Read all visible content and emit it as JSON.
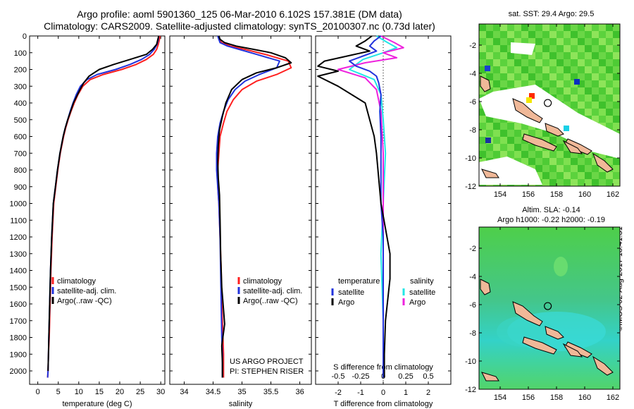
{
  "header": {
    "line1": "Argo profile: aoml 5901360_125 06-Mar-2010 6.102S 157.381E (DM data)",
    "line2": "Climatology: CARS2009. Satellite-adjusted climatology: synTS_20100307.nc (0.73d later)"
  },
  "colors": {
    "climatology": "#ff1f1f",
    "satellite": "#2233dd",
    "argo": "#000000",
    "s_satellite": "#22e6e6",
    "s_argo": "#ee22dd"
  },
  "chart_data": [
    {
      "type": "line",
      "panel": "temperature",
      "xlabel": "temperature (deg C)",
      "ylabel": "",
      "xlim": [
        -2,
        31
      ],
      "ylim": [
        2080,
        0
      ],
      "xticks": [
        0,
        5,
        10,
        15,
        20,
        25,
        30
      ],
      "yticks": [
        0,
        100,
        200,
        300,
        400,
        500,
        600,
        700,
        800,
        900,
        1000,
        1100,
        1200,
        1300,
        1400,
        1500,
        1600,
        1700,
        1800,
        1900,
        2000
      ],
      "legend": [
        "climatology",
        "satellite-adj. clim.",
        "Argo(..raw -QC)"
      ],
      "series": [
        {
          "name": "climatology",
          "x": [
            29.8,
            29.7,
            29.4,
            29.0,
            28.2,
            26.5,
            24.0,
            20.5,
            16.0,
            12.8,
            11.0,
            9.8,
            8.9,
            8.1,
            7.4,
            6.8,
            6.3,
            5.5,
            4.9,
            4.4,
            3.9,
            3.5,
            3.2,
            3.0,
            2.8,
            2.6,
            2.5,
            2.4
          ],
          "y": [
            0,
            20,
            50,
            80,
            110,
            140,
            170,
            200,
            230,
            260,
            300,
            350,
            400,
            450,
            500,
            550,
            600,
            700,
            800,
            900,
            1000,
            1200,
            1400,
            1600,
            1800,
            1900,
            2000,
            2040
          ]
        },
        {
          "name": "satellite-adj. clim.",
          "x": [
            29.5,
            29.4,
            29.1,
            28.4,
            27.3,
            25.3,
            22.5,
            19.0,
            14.5,
            12.0,
            10.4,
            9.4,
            8.6,
            7.9,
            7.3,
            6.7,
            6.2,
            5.4,
            4.8,
            4.3,
            3.8,
            3.4,
            3.1,
            2.9,
            2.7,
            2.6,
            2.5,
            2.4
          ],
          "y": [
            0,
            20,
            50,
            80,
            110,
            140,
            170,
            200,
            230,
            260,
            300,
            350,
            400,
            450,
            500,
            550,
            600,
            700,
            800,
            900,
            1000,
            1200,
            1400,
            1600,
            1800,
            1900,
            2000,
            2040
          ]
        },
        {
          "name": "Argo(..raw -QC)",
          "x": [
            29.5,
            29.3,
            29.0,
            28.0,
            26.5,
            22.5,
            18.5,
            15.0,
            12.5,
            11.2,
            10.3,
            9.5,
            8.7,
            8.0,
            7.3,
            6.7,
            6.2,
            5.4,
            4.8,
            4.3,
            3.8,
            3.4,
            3.1,
            2.9,
            2.7,
            2.6,
            2.5
          ],
          "y": [
            0,
            20,
            50,
            80,
            110,
            140,
            170,
            200,
            240,
            280,
            320,
            360,
            400,
            450,
            500,
            550,
            600,
            700,
            800,
            900,
            1000,
            1200,
            1400,
            1600,
            1800,
            1900,
            2000
          ]
        }
      ]
    },
    {
      "type": "line",
      "panel": "salinity",
      "xlabel": "salinity",
      "ylabel": "",
      "xlim": [
        33.75,
        36.2
      ],
      "ylim": [
        2080,
        0
      ],
      "xticks": [
        34,
        34.5,
        35,
        35.5,
        36
      ],
      "legend": [
        "climatology",
        "satellite-adj. clim.",
        "Argo(..raw -QC)"
      ],
      "annotation": [
        "US ARGO PROJECT",
        "PI: STEPHEN RISER"
      ],
      "series": [
        {
          "name": "climatology",
          "x": [
            34.6,
            34.6,
            34.65,
            34.8,
            35.05,
            35.4,
            35.8,
            35.85,
            35.6,
            35.25,
            35.0,
            34.85,
            34.74,
            34.68,
            34.62,
            34.6,
            34.58,
            34.58,
            34.6,
            34.62,
            34.64,
            34.65,
            34.66,
            34.67,
            34.68,
            34.68
          ],
          "y": [
            0,
            20,
            40,
            60,
            80,
            110,
            150,
            190,
            230,
            270,
            320,
            380,
            450,
            520,
            600,
            700,
            800,
            900,
            1000,
            1200,
            1400,
            1600,
            1700,
            1800,
            1900,
            2040
          ]
        },
        {
          "name": "satellite-adj. clim.",
          "x": [
            34.58,
            34.6,
            34.62,
            34.75,
            34.95,
            35.25,
            35.65,
            35.6,
            35.3,
            35.05,
            34.88,
            34.76,
            34.68,
            34.62,
            34.58,
            34.56,
            34.56,
            34.58,
            34.6,
            34.62,
            34.63,
            34.64,
            34.65,
            34.66,
            34.66
          ],
          "y": [
            0,
            20,
            40,
            60,
            80,
            110,
            150,
            190,
            230,
            270,
            320,
            380,
            450,
            520,
            600,
            700,
            800,
            900,
            1000,
            1200,
            1400,
            1600,
            1800,
            1900,
            2040
          ]
        },
        {
          "name": "Argo(..raw -QC)",
          "x": [
            34.6,
            34.62,
            34.7,
            34.9,
            35.2,
            35.5,
            35.75,
            35.85,
            35.6,
            35.25,
            35.0,
            34.82,
            34.72,
            34.66,
            34.61,
            34.59,
            34.58,
            34.59,
            34.61,
            34.62,
            34.63,
            34.65,
            34.7,
            34.65,
            34.66,
            34.66
          ],
          "y": [
            0,
            20,
            40,
            60,
            80,
            100,
            130,
            160,
            190,
            220,
            260,
            320,
            400,
            480,
            560,
            650,
            750,
            850,
            950,
            1100,
            1300,
            1500,
            1720,
            1850,
            1950,
            2040
          ]
        }
      ]
    },
    {
      "type": "line",
      "panel": "difference",
      "xlabel": "T difference from climatology",
      "xlabel_top": "S difference from climatology",
      "xlim": [
        -3.0,
        3.0
      ],
      "ylim": [
        2080,
        0
      ],
      "xticks": [
        -2,
        -1,
        0,
        1,
        2
      ],
      "s_ticks": [
        -0.5,
        -0.25,
        0,
        0.25,
        0.5
      ],
      "legend": [
        "temperature",
        "satellite",
        "Argo",
        "salinity",
        "satellite",
        "Argo"
      ],
      "series": [
        {
          "name": "satellite",
          "x": [
            -0.1,
            -0.4,
            -0.6,
            -0.3,
            -0.9,
            -1.5,
            -1.2,
            -0.6,
            -0.3,
            -0.2,
            -0.1,
            -0.15,
            -0.1,
            -0.1,
            -0.1,
            0.0,
            0.0,
            0.0,
            0.0
          ],
          "y": [
            0,
            30,
            60,
            90,
            120,
            150,
            180,
            210,
            240,
            280,
            350,
            450,
            600,
            800,
            1000,
            1200,
            1500,
            1800,
            2040
          ]
        },
        {
          "name": "Argo",
          "x": [
            -0.5,
            -0.8,
            -1.2,
            -0.6,
            -1.6,
            -2.6,
            -2.9,
            -2.0,
            -2.9,
            -2.0,
            -0.8,
            -0.6,
            -0.4,
            -0.3,
            -0.2,
            -0.1,
            0.1,
            0.3,
            0.3,
            0.1,
            0.05,
            0.05
          ],
          "y": [
            0,
            30,
            60,
            90,
            120,
            150,
            180,
            210,
            240,
            300,
            400,
            500,
            600,
            700,
            850,
            1000,
            1150,
            1300,
            1450,
            1700,
            1900,
            2040
          ]
        },
        {
          "name": "satellite",
          "x": [
            -0.3,
            0.2,
            0.6,
            0.0,
            -0.9,
            -1.5,
            -0.4,
            -0.1,
            0.0,
            0.1,
            0.0,
            -0.1,
            0.0,
            0.0
          ],
          "y": [
            0,
            40,
            70,
            100,
            140,
            200,
            260,
            350,
            500,
            700,
            1000,
            1300,
            1700,
            2040
          ]
        },
        {
          "name": "Argo",
          "x": [
            -0.1,
            0.5,
            0.9,
            0.0,
            0.6,
            -0.8,
            -2.0,
            -0.8,
            -0.3,
            -0.1,
            0.0,
            0.0,
            0.0,
            0.0
          ],
          "y": [
            0,
            40,
            70,
            100,
            130,
            160,
            200,
            250,
            320,
            450,
            700,
            1000,
            1500,
            2040
          ]
        }
      ]
    },
    {
      "type": "heatmap",
      "panel": "SST map",
      "title": "sat. SST: 29.4 Argo: 29.5",
      "xlim": [
        152.5,
        162.5
      ],
      "ylim": [
        -12,
        -0.5
      ],
      "xticks": [
        154,
        156,
        158,
        160,
        162
      ],
      "yticks": [
        -2,
        -4,
        -6,
        -8,
        -10,
        -12
      ],
      "argo_position": {
        "lon": 157.381,
        "lat": -6.102
      }
    },
    {
      "type": "heatmap",
      "panel": "SLA map",
      "title": "Altim. SLA: -0.14",
      "subtitle": "Argo h1000: -0.22 h2000: -0.19",
      "xlim": [
        152.5,
        162.5
      ],
      "ylim": [
        -12,
        -0.5
      ],
      "xticks": [
        154,
        156,
        158,
        160,
        162
      ],
      "yticks": [
        -2,
        -4,
        -6,
        -8,
        -10,
        -12
      ],
      "argo_position": {
        "lon": 157.381,
        "lat": -6.102
      }
    }
  ],
  "stamp": "©IMOS 02-Aug-2017 18:41:31"
}
